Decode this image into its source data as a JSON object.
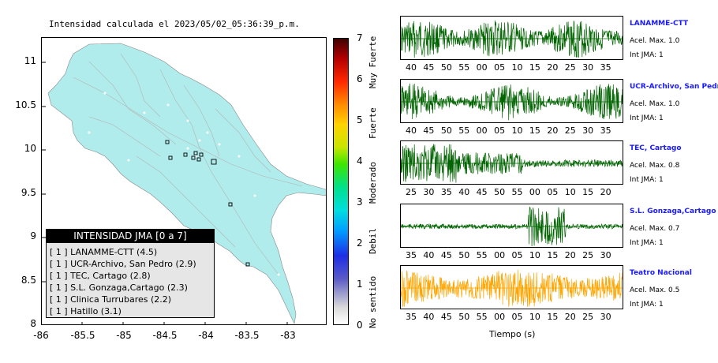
{
  "map": {
    "title": "Intensidad calculada el 2023/05/02_05:36:39_p.m.",
    "y_ticks": [
      "11",
      "10.5",
      "10",
      "9.5",
      "9",
      "8.5",
      "8"
    ],
    "x_ticks": [
      "-86",
      "-85.5",
      "-85",
      "-84.5",
      "-84",
      "-83.5",
      "-83"
    ],
    "land_color": "#b0ecec"
  },
  "legend": {
    "title": "INTENSIDAD JMA [0 a 7]",
    "rows": [
      "[ 1 ]  LANAMME-CTT (4.5)",
      "[ 1 ]  UCR-Archivo, San Pedro (2.9)",
      "[ 1 ]  TEC, Cartago (2.8)",
      "[ 1 ]  S.L. Gonzaga,Cartago (2.3)",
      "[ 1 ]  Clinica Turrubares (2.2)",
      "[ 1 ]  Hatillo (3.1)"
    ]
  },
  "colorbar": {
    "ticks": [
      "7",
      "6",
      "5",
      "4",
      "3",
      "2",
      "1",
      "0"
    ],
    "labels": [
      "Muy Fuerte",
      "Fuerte",
      "Moderado",
      "Debil",
      "No sentido"
    ]
  },
  "stations": [
    {
      "name": "LANAMME-CTT",
      "accel": "Acel. Max. 1.0",
      "jma": "Int JMA: 1",
      "color": "#006400",
      "ticks": [
        "40",
        "45",
        "50",
        "55",
        "00",
        "05",
        "10",
        "15",
        "20",
        "25",
        "30",
        "35"
      ]
    },
    {
      "name": "UCR-Archivo, San Pedro",
      "accel": "Acel. Max. 1.0",
      "jma": "Int JMA: 1",
      "color": "#006400",
      "ticks": [
        "40",
        "45",
        "50",
        "55",
        "00",
        "05",
        "10",
        "15",
        "20",
        "25",
        "30",
        "35"
      ]
    },
    {
      "name": "TEC, Cartago",
      "accel": "Acel. Max. 0.8",
      "jma": "Int JMA: 1",
      "color": "#006400",
      "ticks": [
        "25",
        "30",
        "35",
        "40",
        "45",
        "50",
        "55",
        "00",
        "05",
        "10",
        "15",
        "20"
      ]
    },
    {
      "name": "S.L. Gonzaga,Cartago",
      "accel": "Acel. Max. 0.7",
      "jma": "Int JMA: 1",
      "color": "#006400",
      "ticks": [
        "35",
        "40",
        "45",
        "50",
        "55",
        "00",
        "05",
        "10",
        "15",
        "20",
        "25",
        "30"
      ]
    },
    {
      "name": "Teatro Nacional",
      "accel": "Acel. Max. 0.5",
      "jma": "Int JMA: 1",
      "color": "#ffa500",
      "ticks": [
        "35",
        "40",
        "45",
        "50",
        "55",
        "00",
        "05",
        "10",
        "15",
        "20",
        "25",
        "30"
      ]
    }
  ],
  "time_axis_label": "Tiempo (s)"
}
